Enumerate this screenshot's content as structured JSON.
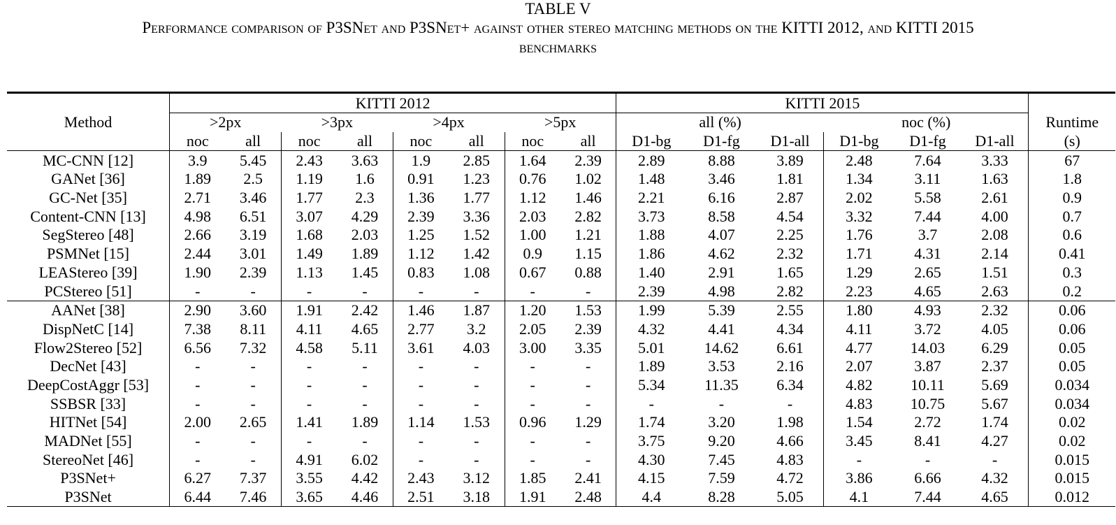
{
  "table_number": "TABLE V",
  "caption_line1": "Performance comparison of P3SNet and P3SNet+ against other stereo matching methods on the KITTI 2012, and KITTI 2015",
  "caption_line2": "benchmarks",
  "headers": {
    "method": "Method",
    "kitti2012": "KITTI 2012",
    "kitti2015": "KITTI 2015",
    "runtime": "Runtime",
    "runtime_unit": "(s)",
    "px2": ">2px",
    "px3": ">3px",
    "px4": ">4px",
    "px5": ">5px",
    "all_pct": "all (%)",
    "noc_pct": "noc (%)",
    "noc": "noc",
    "all": "all",
    "d1bg": "D1-bg",
    "d1fg": "D1-fg",
    "d1all": "D1-all"
  },
  "rows": [
    [
      "MC-CNN [12]",
      "3.9",
      "5.45",
      "2.43",
      "3.63",
      "1.9",
      "2.85",
      "1.64",
      "2.39",
      "2.89",
      "8.88",
      "3.89",
      "2.48",
      "7.64",
      "3.33",
      "67"
    ],
    [
      "GANet [36]",
      "1.89",
      "2.5",
      "1.19",
      "1.6",
      "0.91",
      "1.23",
      "0.76",
      "1.02",
      "1.48",
      "3.46",
      "1.81",
      "1.34",
      "3.11",
      "1.63",
      "1.8"
    ],
    [
      "GC-Net [35]",
      "2.71",
      "3.46",
      "1.77",
      "2.3",
      "1.36",
      "1.77",
      "1.12",
      "1.46",
      "2.21",
      "6.16",
      "2.87",
      "2.02",
      "5.58",
      "2.61",
      "0.9"
    ],
    [
      "Content-CNN [13]",
      "4.98",
      "6.51",
      "3.07",
      "4.29",
      "2.39",
      "3.36",
      "2.03",
      "2.82",
      "3.73",
      "8.58",
      "4.54",
      "3.32",
      "7.44",
      "4.00",
      "0.7"
    ],
    [
      "SegStereo [48]",
      "2.66",
      "3.19",
      "1.68",
      "2.03",
      "1.25",
      "1.52",
      "1.00",
      "1.21",
      "1.88",
      "4.07",
      "2.25",
      "1.76",
      "3.7",
      "2.08",
      "0.6"
    ],
    [
      "PSMNet [15]",
      "2.44",
      "3.01",
      "1.49",
      "1.89",
      "1.12",
      "1.42",
      "0.9",
      "1.15",
      "1.86",
      "4.62",
      "2.32",
      "1.71",
      "4.31",
      "2.14",
      "0.41"
    ],
    [
      "LEAStereo [39]",
      "1.90",
      "2.39",
      "1.13",
      "1.45",
      "0.83",
      "1.08",
      "0.67",
      "0.88",
      "1.40",
      "2.91",
      "1.65",
      "1.29",
      "2.65",
      "1.51",
      "0.3"
    ],
    [
      "PCStereo [51]",
      "-",
      "-",
      "-",
      "-",
      "-",
      "-",
      "-",
      "-",
      "2.39",
      "4.98",
      "2.82",
      "2.23",
      "4.65",
      "2.63",
      "0.2"
    ],
    [
      "AANet [38]",
      "2.90",
      "3.60",
      "1.91",
      "2.42",
      "1.46",
      "1.87",
      "1.20",
      "1.53",
      "1.99",
      "5.39",
      "2.55",
      "1.80",
      "4.93",
      "2.32",
      "0.06"
    ],
    [
      "DispNetC [14]",
      "7.38",
      "8.11",
      "4.11",
      "4.65",
      "2.77",
      "3.2",
      "2.05",
      "2.39",
      "4.32",
      "4.41",
      "4.34",
      "4.11",
      "3.72",
      "4.05",
      "0.06"
    ],
    [
      "Flow2Stereo [52]",
      "6.56",
      "7.32",
      "4.58",
      "5.11",
      "3.61",
      "4.03",
      "3.00",
      "3.35",
      "5.01",
      "14.62",
      "6.61",
      "4.77",
      "14.03",
      "6.29",
      "0.05"
    ],
    [
      "DecNet [43]",
      "-",
      "-",
      "-",
      "-",
      "-",
      "-",
      "-",
      "-",
      "1.89",
      "3.53",
      "2.16",
      "2.07",
      "3.87",
      "2.37",
      "0.05"
    ],
    [
      "DeepCostAggr [53]",
      "-",
      "-",
      "-",
      "-",
      "-",
      "-",
      "-",
      "-",
      "5.34",
      "11.35",
      "6.34",
      "4.82",
      "10.11",
      "5.69",
      "0.034"
    ],
    [
      "SSBSR [33]",
      "-",
      "-",
      "-",
      "-",
      "-",
      "-",
      "-",
      "-",
      "-",
      "-",
      "-",
      "4.83",
      "10.75",
      "5.67",
      "0.034"
    ],
    [
      "HITNet [54]",
      "2.00",
      "2.65",
      "1.41",
      "1.89",
      "1.14",
      "1.53",
      "0.96",
      "1.29",
      "1.74",
      "3.20",
      "1.98",
      "1.54",
      "2.72",
      "1.74",
      "0.02"
    ],
    [
      "MADNet [55]",
      "-",
      "-",
      "-",
      "-",
      "-",
      "-",
      "-",
      "-",
      "3.75",
      "9.20",
      "4.66",
      "3.45",
      "8.41",
      "4.27",
      "0.02"
    ],
    [
      "StereoNet [46]",
      "-",
      "-",
      "4.91",
      "6.02",
      "-",
      "-",
      "-",
      "-",
      "4.30",
      "7.45",
      "4.83",
      "-",
      "-",
      "-",
      "0.015"
    ],
    [
      "P3SNet+",
      "6.27",
      "7.37",
      "3.55",
      "4.42",
      "2.43",
      "3.12",
      "1.85",
      "2.41",
      "4.15",
      "7.59",
      "4.72",
      "3.86",
      "6.66",
      "4.32",
      "0.015"
    ],
    [
      "P3SNet",
      "6.44",
      "7.46",
      "3.65",
      "4.46",
      "2.51",
      "3.18",
      "1.91",
      "2.48",
      "4.4",
      "8.28",
      "5.05",
      "4.1",
      "7.44",
      "4.65",
      "0.012"
    ]
  ],
  "bold_cells": [
    [
      1,
      1
    ],
    [
      6,
      2
    ],
    [
      6,
      3
    ],
    [
      6,
      4
    ],
    [
      6,
      5
    ],
    [
      6,
      6
    ],
    [
      6,
      7
    ],
    [
      6,
      8
    ],
    [
      6,
      9
    ],
    [
      6,
      10
    ],
    [
      6,
      11
    ],
    [
      6,
      12
    ],
    [
      6,
      13
    ],
    [
      6,
      14
    ],
    [
      18,
      15
    ]
  ]
}
